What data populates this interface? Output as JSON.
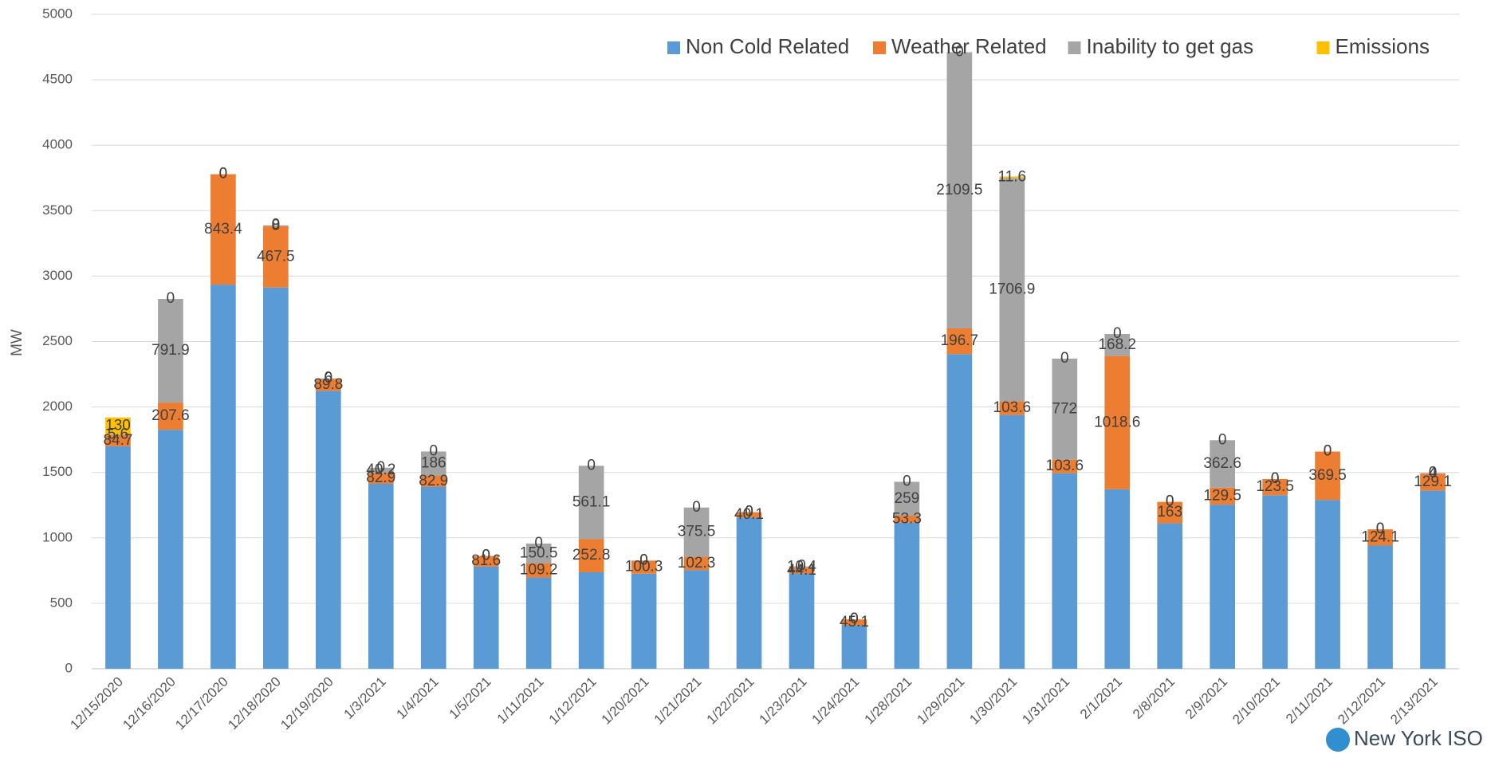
{
  "chart_data": {
    "type": "stacked_bar",
    "y_label": "MW",
    "logo": "New York ISO",
    "categories": [
      "12/15/2020",
      "12/16/2020",
      "12/17/2020",
      "12/18/2020",
      "12/19/2020",
      "1/3/2021",
      "1/4/2021",
      "1/5/2021",
      "1/11/2021",
      "1/12/2021",
      "1/20/2021",
      "1/21/2021",
      "1/22/2021",
      "1/23/2021",
      "1/24/2021",
      "1/28/2021",
      "1/29/2021",
      "1/30/2021",
      "1/31/2021",
      "2/1/2021",
      "2/8/2021",
      "2/9/2021",
      "2/10/2021",
      "2/11/2021",
      "2/12/2021",
      "2/13/2021"
    ],
    "series": [
      {
        "name": "Non Cold Related",
        "color": "#5b9bd5",
        "labels": false,
        "values": [
          1700,
          1826,
          2935,
          2913,
          2123,
          1413,
          1391,
          780,
          697,
          737,
          726,
          754,
          1156,
          728,
          332,
          1116,
          2404,
          1939,
          1494,
          1371,
          1112,
          1254,
          1326,
          1290,
          941,
          1362
        ]
      },
      {
        "name": "Weather Related",
        "color": "#ed7d31",
        "labels": true,
        "values": [
          84.7,
          207.6,
          843.4,
          467.5,
          89.8,
          82.9,
          82.9,
          81.6,
          109.2,
          252.8,
          100.3,
          102.3,
          40.1,
          44.1,
          45.1,
          53.3,
          196.7,
          103.6,
          103.6,
          1018.6,
          163,
          129.5,
          123.5,
          369.5,
          124.1,
          129.1
        ]
      },
      {
        "name": "Inability to get gas",
        "color": "#a5a5a5",
        "labels": true,
        "values": [
          5.6,
          791.9,
          0,
          8,
          6,
          40.2,
          186,
          0,
          150.5,
          561.1,
          0,
          375.5,
          0,
          10.4,
          0,
          259,
          2109.5,
          1706.9,
          772,
          168.2,
          0,
          362.6,
          0,
          0,
          0,
          4
        ]
      },
      {
        "name": "Emissions",
        "color": "#ffc000",
        "labels": true,
        "values": [
          130,
          0,
          0,
          0,
          0,
          0,
          0,
          0,
          0,
          0,
          0,
          0,
          0,
          0,
          0,
          0,
          0,
          11.6,
          0,
          0,
          0,
          0,
          0,
          0,
          0,
          0
        ]
      }
    ],
    "ylim": [
      0,
      5000
    ],
    "yticks": [
      0,
      500,
      1000,
      1500,
      2000,
      2500,
      3000,
      3500,
      4000,
      4500,
      5000
    ],
    "grid": true,
    "legend": "top-right"
  }
}
